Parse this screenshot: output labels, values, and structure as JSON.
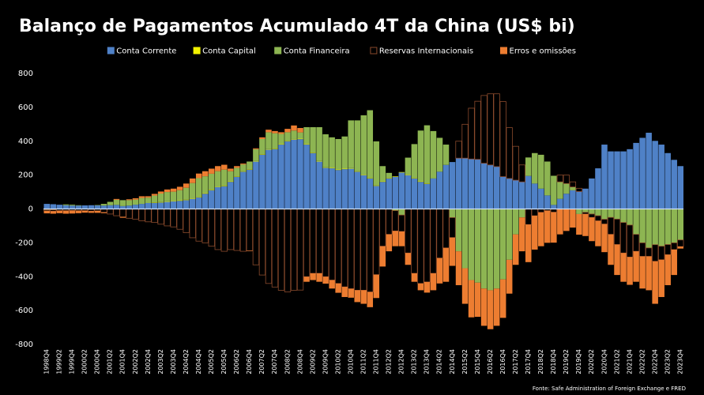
{
  "chart_data": {
    "type": "bar",
    "stacked": true,
    "title": "Balanço de Pagamentos Acumulado 4T da China (US$ bi)",
    "source": "Fonte: Safe Administration of Foreign Exchange e FRED",
    "categories": [
      "1998Q4",
      null,
      "1999Q2",
      null,
      "1999Q4",
      null,
      "2000Q2",
      null,
      "2000Q4",
      null,
      "2001Q2",
      null,
      "2001Q4",
      null,
      "2002Q2",
      null,
      "2002Q4",
      null,
      "2003Q2",
      null,
      "2003Q4",
      null,
      "2004Q2",
      null,
      "2004Q4",
      null,
      "2005Q2",
      null,
      "2005Q4",
      null,
      "2006Q2",
      null,
      "2006Q4",
      null,
      "2007Q2",
      null,
      "2007Q4",
      null,
      "2008Q2",
      null,
      "2008Q4",
      null,
      "2009Q2",
      null,
      "2009Q4",
      null,
      "2010Q2",
      null,
      "2010Q4",
      null,
      "2011Q2",
      null,
      "2011Q4",
      null,
      "2012Q2",
      null,
      "2012Q4",
      null,
      "2013Q2",
      null,
      "2013Q4",
      null,
      "2014Q2",
      null,
      "2014Q4",
      null,
      "2015Q2",
      null,
      "2015Q4",
      null,
      "2016Q2",
      null,
      "2016Q4",
      null,
      "2017Q2",
      null,
      "2017Q4",
      null,
      "2018Q2",
      null,
      "2018Q4",
      null,
      "2019Q2",
      null,
      "2019Q4",
      null,
      "2020Q2",
      null,
      "2020Q4",
      null,
      "2021Q2",
      null,
      "2021Q4",
      null,
      "2022Q2",
      null,
      "2022Q4",
      null,
      "2023Q2",
      null,
      "2023Q4"
    ],
    "series": [
      {
        "name": "Conta Corrente",
        "color": "#4f81c7",
        "outline": false,
        "values": [
          30,
          28,
          25,
          22,
          20,
          20,
          21,
          22,
          21,
          20,
          22,
          24,
          17,
          20,
          25,
          30,
          35,
          36,
          38,
          42,
          46,
          48,
          52,
          60,
          69,
          90,
          110,
          130,
          134,
          160,
          190,
          220,
          232,
          280,
          320,
          350,
          353,
          380,
          400,
          410,
          412,
          380,
          330,
          280,
          243,
          240,
          230,
          235,
          238,
          220,
          200,
          180,
          136,
          160,
          180,
          190,
          215,
          200,
          180,
          160,
          148,
          180,
          220,
          260,
          277,
          300,
          300,
          295,
          293,
          270,
          260,
          250,
          191,
          180,
          170,
          160,
          195,
          150,
          120,
          80,
          24,
          60,
          90,
          110,
          103,
          120,
          180,
          240,
          380,
          340,
          340,
          340,
          353,
          390,
          420,
          450,
          402,
          380,
          330,
          290,
          253
        ]
      },
      {
        "name": "Conta Capital",
        "color": "#f2f200",
        "outline": false,
        "values": [
          0,
          0,
          0,
          0,
          0,
          0,
          0,
          0,
          0,
          0,
          0,
          0,
          0,
          0,
          0,
          0,
          0,
          3,
          3,
          3,
          3,
          3,
          3,
          3,
          3,
          3,
          3,
          3,
          3,
          3,
          3,
          3,
          3,
          3,
          3,
          3,
          3,
          3,
          3,
          3,
          3,
          3,
          3,
          3,
          3,
          3,
          3,
          3,
          3,
          3,
          3,
          3,
          3,
          3,
          3,
          3,
          3,
          3,
          3,
          3,
          3,
          0,
          0,
          0,
          0,
          0,
          0,
          0,
          0,
          0,
          0,
          0,
          0,
          0,
          0,
          0,
          0,
          0,
          0,
          0,
          0,
          0,
          0,
          0,
          0,
          0,
          0,
          0,
          0,
          0,
          0,
          0,
          0,
          0,
          0,
          0,
          0,
          0,
          0,
          0,
          0
        ]
      },
      {
        "name": "Conta Financeira",
        "color": "#8db552",
        "outline": false,
        "values": [
          -5,
          -5,
          0,
          5,
          5,
          2,
          0,
          -2,
          2,
          10,
          20,
          30,
          35,
          32,
          30,
          35,
          32,
          40,
          50,
          55,
          53,
          60,
          70,
          90,
          110,
          100,
          95,
          90,
          95,
          60,
          50,
          40,
          45,
          70,
          90,
          100,
          91,
          60,
          50,
          50,
          37,
          100,
          150,
          200,
          195,
          180,
          180,
          190,
          282,
          300,
          350,
          400,
          260,
          90,
          30,
          -10,
          -36,
          100,
          200,
          300,
          343,
          280,
          200,
          120,
          -51,
          -250,
          -350,
          -420,
          -435,
          -470,
          -480,
          -470,
          -416,
          -300,
          -150,
          -50,
          109,
          180,
          200,
          200,
          172,
          100,
          60,
          20,
          -30,
          -20,
          -30,
          -40,
          -61,
          -50,
          -60,
          -80,
          -95,
          -150,
          -200,
          -230,
          -211,
          -220,
          -210,
          -200,
          -183
        ]
      },
      {
        "name": "Reservas Internacionais",
        "color": "#8a4a2c",
        "outline": true,
        "values": [
          -6,
          -8,
          -10,
          -10,
          -9,
          -10,
          -10,
          -11,
          -11,
          -20,
          -30,
          -40,
          -47,
          -55,
          -60,
          -70,
          -76,
          -80,
          -90,
          -100,
          -106,
          -120,
          -140,
          -170,
          -190,
          -200,
          -220,
          -240,
          -250,
          -240,
          -245,
          -250,
          -247,
          -330,
          -390,
          -440,
          -461,
          -480,
          -490,
          -480,
          -479,
          -400,
          -380,
          -380,
          -400,
          -420,
          -440,
          -460,
          -471,
          -480,
          -480,
          -490,
          -388,
          -220,
          -150,
          -120,
          -97,
          -260,
          -380,
          -440,
          -431,
          -380,
          -290,
          -230,
          -118,
          100,
          200,
          300,
          343,
          400,
          420,
          430,
          443,
          300,
          200,
          100,
          -92,
          -40,
          -20,
          -10,
          -19,
          40,
          50,
          30,
          19,
          -10,
          -20,
          -30,
          -28,
          -100,
          -150,
          -180,
          -189,
          -100,
          -80,
          -50,
          -98,
          -80,
          -60,
          -40,
          -39
        ]
      },
      {
        "name": "Erros e omissões",
        "color": "#ed7d31",
        "outline": false,
        "values": [
          -15,
          -15,
          -15,
          -18,
          -18,
          -15,
          -12,
          -10,
          -12,
          -5,
          0,
          5,
          -5,
          5,
          8,
          10,
          8,
          10,
          12,
          15,
          18,
          20,
          25,
          27,
          27,
          30,
          30,
          30,
          29,
          15,
          10,
          5,
          -1,
          5,
          10,
          15,
          13,
          10,
          20,
          30,
          26,
          -30,
          -40,
          -50,
          -41,
          -50,
          -55,
          -60,
          -53,
          -70,
          -80,
          -90,
          -138,
          -120,
          -100,
          -90,
          -87,
          -70,
          -50,
          -40,
          -63,
          -100,
          -150,
          -200,
          -167,
          -200,
          -210,
          -220,
          -202,
          -220,
          -230,
          -220,
          -227,
          -200,
          -180,
          -200,
          -222,
          -200,
          -200,
          -190,
          -180,
          -150,
          -130,
          -110,
          -122,
          -130,
          -140,
          -150,
          -166,
          -180,
          -180,
          -170,
          -164,
          -180,
          -190,
          -200,
          -251,
          -220,
          -180,
          -150,
          -12
        ]
      }
    ],
    "ylim": [
      -800,
      800
    ],
    "yticks": [
      -800,
      -600,
      -400,
      -200,
      0,
      200,
      400,
      600,
      800
    ],
    "grid": false
  }
}
